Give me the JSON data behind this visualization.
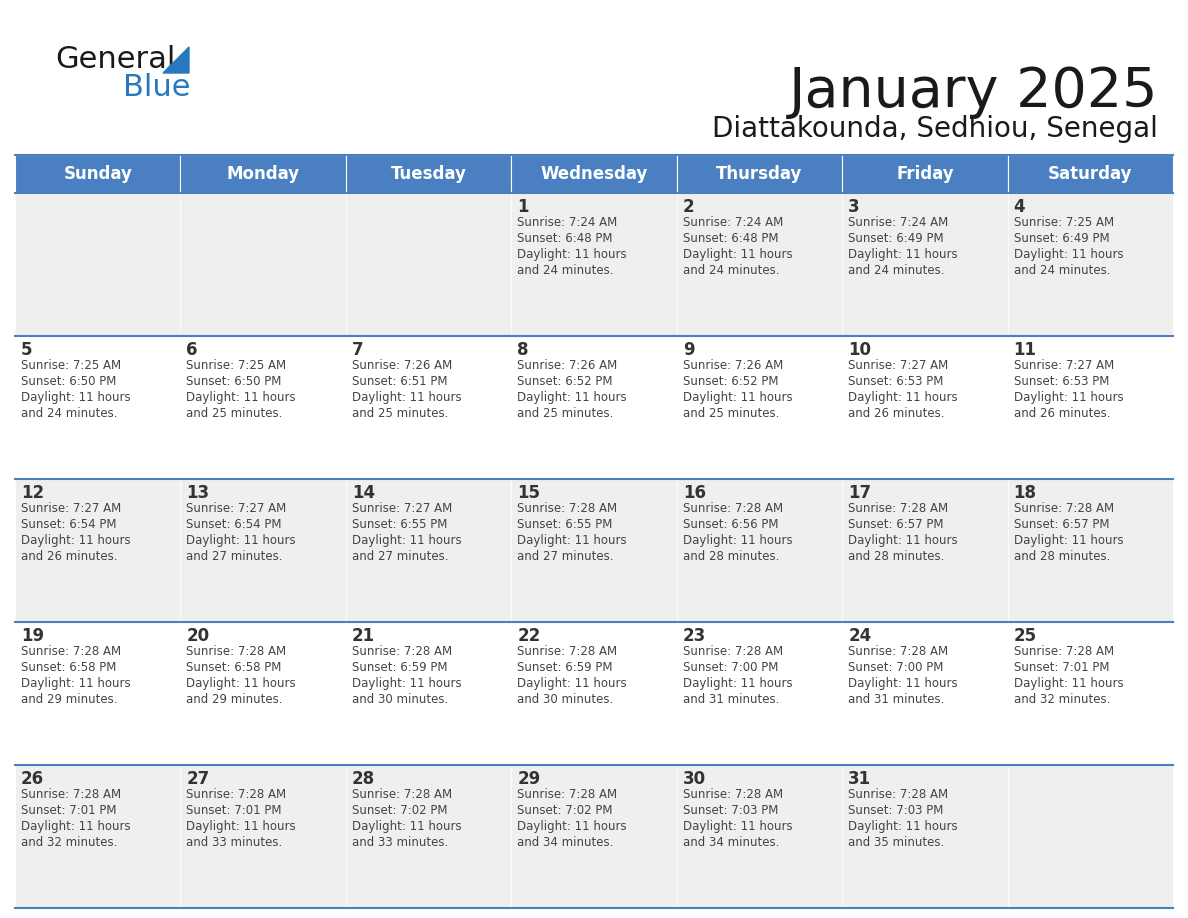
{
  "title": "January 2025",
  "subtitle": "Diattakounda, Sedhiou, Senegal",
  "days_of_week": [
    "Sunday",
    "Monday",
    "Tuesday",
    "Wednesday",
    "Thursday",
    "Friday",
    "Saturday"
  ],
  "header_bg": "#4A7FC1",
  "header_text": "#FFFFFF",
  "cell_bg_odd": "#EFEFEF",
  "cell_bg_even": "#FFFFFF",
  "day_num_color": "#333333",
  "cell_text_color": "#444444",
  "grid_color": "#4A7FC1",
  "logo_general_color": "#1a1a1a",
  "logo_blue_color": "#2878C0",
  "title_color": "#1a1a1a",
  "subtitle_color": "#1a1a1a",
  "weeks": [
    [
      {
        "date": "",
        "sunrise": "",
        "sunset": "",
        "daylight_h": "",
        "daylight_m": ""
      },
      {
        "date": "",
        "sunrise": "",
        "sunset": "",
        "daylight_h": "",
        "daylight_m": ""
      },
      {
        "date": "",
        "sunrise": "",
        "sunset": "",
        "daylight_h": "",
        "daylight_m": ""
      },
      {
        "date": "1",
        "sunrise": "7:24 AM",
        "sunset": "6:48 PM",
        "daylight_h": "11 hours",
        "daylight_m": "and 24 minutes."
      },
      {
        "date": "2",
        "sunrise": "7:24 AM",
        "sunset": "6:48 PM",
        "daylight_h": "11 hours",
        "daylight_m": "and 24 minutes."
      },
      {
        "date": "3",
        "sunrise": "7:24 AM",
        "sunset": "6:49 PM",
        "daylight_h": "11 hours",
        "daylight_m": "and 24 minutes."
      },
      {
        "date": "4",
        "sunrise": "7:25 AM",
        "sunset": "6:49 PM",
        "daylight_h": "11 hours",
        "daylight_m": "and 24 minutes."
      }
    ],
    [
      {
        "date": "5",
        "sunrise": "7:25 AM",
        "sunset": "6:50 PM",
        "daylight_h": "11 hours",
        "daylight_m": "and 24 minutes."
      },
      {
        "date": "6",
        "sunrise": "7:25 AM",
        "sunset": "6:50 PM",
        "daylight_h": "11 hours",
        "daylight_m": "and 25 minutes."
      },
      {
        "date": "7",
        "sunrise": "7:26 AM",
        "sunset": "6:51 PM",
        "daylight_h": "11 hours",
        "daylight_m": "and 25 minutes."
      },
      {
        "date": "8",
        "sunrise": "7:26 AM",
        "sunset": "6:52 PM",
        "daylight_h": "11 hours",
        "daylight_m": "and 25 minutes."
      },
      {
        "date": "9",
        "sunrise": "7:26 AM",
        "sunset": "6:52 PM",
        "daylight_h": "11 hours",
        "daylight_m": "and 25 minutes."
      },
      {
        "date": "10",
        "sunrise": "7:27 AM",
        "sunset": "6:53 PM",
        "daylight_h": "11 hours",
        "daylight_m": "and 26 minutes."
      },
      {
        "date": "11",
        "sunrise": "7:27 AM",
        "sunset": "6:53 PM",
        "daylight_h": "11 hours",
        "daylight_m": "and 26 minutes."
      }
    ],
    [
      {
        "date": "12",
        "sunrise": "7:27 AM",
        "sunset": "6:54 PM",
        "daylight_h": "11 hours",
        "daylight_m": "and 26 minutes."
      },
      {
        "date": "13",
        "sunrise": "7:27 AM",
        "sunset": "6:54 PM",
        "daylight_h": "11 hours",
        "daylight_m": "and 27 minutes."
      },
      {
        "date": "14",
        "sunrise": "7:27 AM",
        "sunset": "6:55 PM",
        "daylight_h": "11 hours",
        "daylight_m": "and 27 minutes."
      },
      {
        "date": "15",
        "sunrise": "7:28 AM",
        "sunset": "6:55 PM",
        "daylight_h": "11 hours",
        "daylight_m": "and 27 minutes."
      },
      {
        "date": "16",
        "sunrise": "7:28 AM",
        "sunset": "6:56 PM",
        "daylight_h": "11 hours",
        "daylight_m": "and 28 minutes."
      },
      {
        "date": "17",
        "sunrise": "7:28 AM",
        "sunset": "6:57 PM",
        "daylight_h": "11 hours",
        "daylight_m": "and 28 minutes."
      },
      {
        "date": "18",
        "sunrise": "7:28 AM",
        "sunset": "6:57 PM",
        "daylight_h": "11 hours",
        "daylight_m": "and 28 minutes."
      }
    ],
    [
      {
        "date": "19",
        "sunrise": "7:28 AM",
        "sunset": "6:58 PM",
        "daylight_h": "11 hours",
        "daylight_m": "and 29 minutes."
      },
      {
        "date": "20",
        "sunrise": "7:28 AM",
        "sunset": "6:58 PM",
        "daylight_h": "11 hours",
        "daylight_m": "and 29 minutes."
      },
      {
        "date": "21",
        "sunrise": "7:28 AM",
        "sunset": "6:59 PM",
        "daylight_h": "11 hours",
        "daylight_m": "and 30 minutes."
      },
      {
        "date": "22",
        "sunrise": "7:28 AM",
        "sunset": "6:59 PM",
        "daylight_h": "11 hours",
        "daylight_m": "and 30 minutes."
      },
      {
        "date": "23",
        "sunrise": "7:28 AM",
        "sunset": "7:00 PM",
        "daylight_h": "11 hours",
        "daylight_m": "and 31 minutes."
      },
      {
        "date": "24",
        "sunrise": "7:28 AM",
        "sunset": "7:00 PM",
        "daylight_h": "11 hours",
        "daylight_m": "and 31 minutes."
      },
      {
        "date": "25",
        "sunrise": "7:28 AM",
        "sunset": "7:01 PM",
        "daylight_h": "11 hours",
        "daylight_m": "and 32 minutes."
      }
    ],
    [
      {
        "date": "26",
        "sunrise": "7:28 AM",
        "sunset": "7:01 PM",
        "daylight_h": "11 hours",
        "daylight_m": "and 32 minutes."
      },
      {
        "date": "27",
        "sunrise": "7:28 AM",
        "sunset": "7:01 PM",
        "daylight_h": "11 hours",
        "daylight_m": "and 33 minutes."
      },
      {
        "date": "28",
        "sunrise": "7:28 AM",
        "sunset": "7:02 PM",
        "daylight_h": "11 hours",
        "daylight_m": "and 33 minutes."
      },
      {
        "date": "29",
        "sunrise": "7:28 AM",
        "sunset": "7:02 PM",
        "daylight_h": "11 hours",
        "daylight_m": "and 34 minutes."
      },
      {
        "date": "30",
        "sunrise": "7:28 AM",
        "sunset": "7:03 PM",
        "daylight_h": "11 hours",
        "daylight_m": "and 34 minutes."
      },
      {
        "date": "31",
        "sunrise": "7:28 AM",
        "sunset": "7:03 PM",
        "daylight_h": "11 hours",
        "daylight_m": "and 35 minutes."
      },
      {
        "date": "",
        "sunrise": "",
        "sunset": "",
        "daylight_h": "",
        "daylight_m": ""
      }
    ]
  ]
}
